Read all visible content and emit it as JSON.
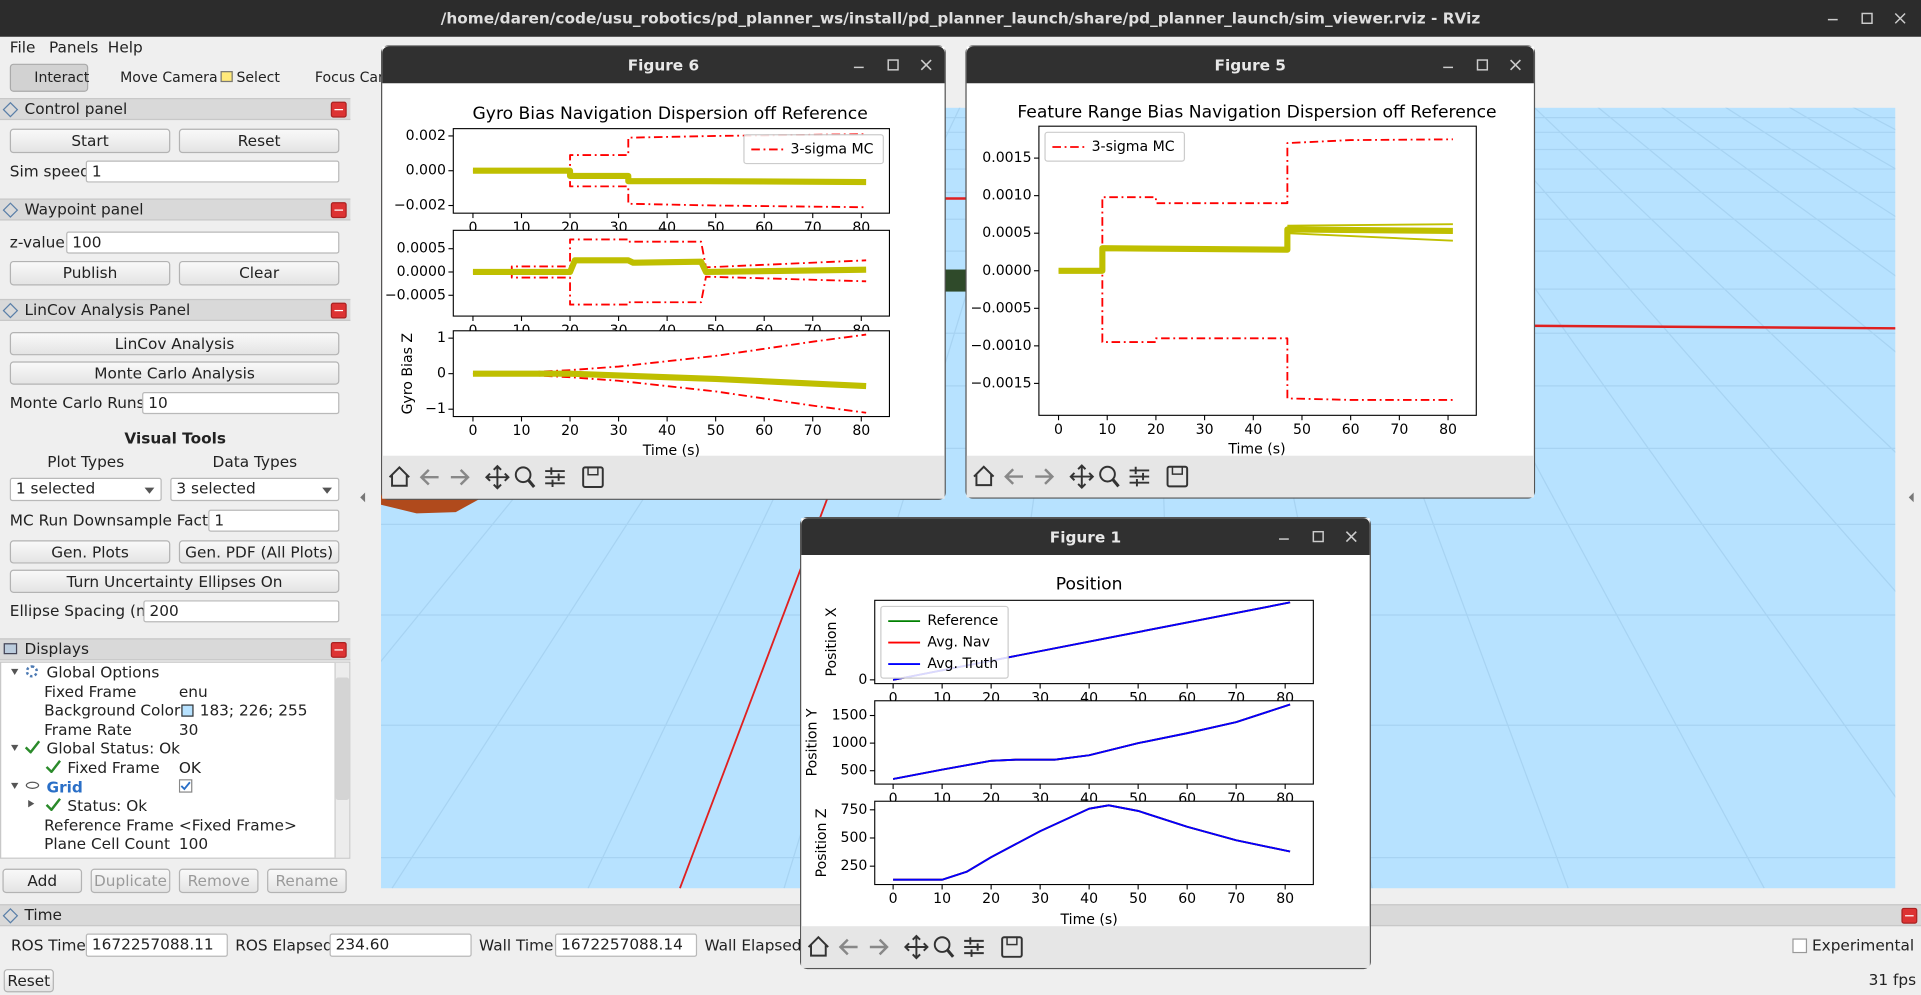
{
  "window_title": "/home/daren/code/usu_robotics/pd_planner_ws/install/pd_planner_launch/share/pd_planner_launch/sim_viewer.rviz - RViz",
  "menu": [
    "File",
    "Panels",
    "Help"
  ],
  "toolbar": [
    "Interact",
    "Move Camera",
    "Select",
    "Focus Camera"
  ],
  "control_panel": {
    "title": "Control panel",
    "start": "Start",
    "reset": "Reset",
    "sim_speed_label": "Sim speed:",
    "sim_speed": "1"
  },
  "waypoint_panel": {
    "title": "Waypoint panel",
    "z_label": "z-value:",
    "z_value": "100",
    "publish": "Publish",
    "clear": "Clear"
  },
  "lincov_panel": {
    "title": "LinCov Analysis Panel",
    "lincov_button": "LinCov Analysis",
    "mc_button": "Monte Carlo Analysis",
    "mc_runs_label": "Monte Carlo Runs:",
    "mc_runs": "10",
    "visual_tools": "Visual Tools",
    "plot_types_label": "Plot Types",
    "data_types_label": "Data Types",
    "plot_types": "1 selected",
    "data_types": "3 selected",
    "downsample_label": "MC Run Downsample Factor:",
    "downsample": "1",
    "gen_plots": "Gen. Plots",
    "gen_pdf": "Gen. PDF (All Plots)",
    "ellipses_button": "Turn Uncertainty Ellipses On",
    "ellipse_spacing_label": "Ellipse Spacing (m):",
    "ellipse_spacing": "200"
  },
  "displays": {
    "title": "Displays",
    "rows": [
      {
        "name": "Global Options"
      },
      {
        "name": "Fixed Frame",
        "value": "enu"
      },
      {
        "name": "Background Color",
        "value": "183; 226; 255"
      },
      {
        "name": "Frame Rate",
        "value": "30"
      },
      {
        "name": "Global Status: Ok"
      },
      {
        "name": "Fixed Frame",
        "value": "OK"
      },
      {
        "name": "Grid"
      },
      {
        "name": "Status: Ok"
      },
      {
        "name": "Reference Frame",
        "value": "<Fixed Frame>"
      },
      {
        "name": "Plane Cell Count",
        "value": "100"
      }
    ],
    "buttons": [
      "Add",
      "Duplicate",
      "Remove",
      "Rename"
    ]
  },
  "time_panel": {
    "title": "Time",
    "ros_time_label": "ROS Time:",
    "ros_time": "1672257088.11",
    "ros_elapsed_label": "ROS Elapsed:",
    "ros_elapsed": "234.60",
    "wall_time_label": "Wall Time:",
    "wall_time": "1672257088.14",
    "wall_elapsed_label": "Wall Elapsed:",
    "experimental": "Experimental",
    "reset": "Reset",
    "fps": "31 fps"
  },
  "figures": [
    {
      "window_title": "Figure 6",
      "title": "Gyro Bias Navigation Dispersion off Reference",
      "xlabel": "Time (s)",
      "subplots": [
        {
          "xlim": [
            -4.05,
            85.8
          ],
          "ylim": [
            -0.00244,
            0.00242
          ],
          "xticks": [
            0,
            10,
            20,
            30,
            40,
            50,
            60,
            70,
            80
          ],
          "yticks": [
            0.002,
            {
              "value": 0,
              "label": "0.000"
            },
            {
              "value": -0.002,
              "label": "−0.002"
            }
          ],
          "legend": "upper right",
          "series": [
            {
              "name": "3-sigma MC",
              "color": "#ff0000",
              "linestyle": "dashdot",
              "linewidth": 1.5,
              "x": [
                0,
                8,
                8,
                20,
                20,
                32,
                32,
                50,
                81
              ],
              "values": [
                5e-05,
                5e-05,
                0.0001,
                0.0001,
                0.0009,
                0.0009,
                0.0019,
                0.002,
                0.0021
              ]
            },
            {
              "color": "#ff0000",
              "linestyle": "dashdot",
              "linewidth": 1.5,
              "x": [
                0,
                8,
                8,
                20,
                20,
                32,
                32,
                50,
                81
              ],
              "values": [
                -5e-05,
                -5e-05,
                -0.0001,
                -0.0001,
                -0.0009,
                -0.0009,
                -0.0019,
                -0.002,
                -0.0021
              ]
            },
            {
              "color": "#bfbf00",
              "linestyle": "solid",
              "linewidth": 5,
              "x": [
                0,
                20,
                20,
                32,
                32,
                48,
                81
              ],
              "values": [
                0,
                0,
                -0.0003,
                -0.0003,
                -0.0006,
                -0.0006,
                -0.00065
              ]
            }
          ]
        },
        {
          "xlim": [
            -4.05,
            85.8
          ],
          "ylim": [
            -0.000947,
            0.000895
          ],
          "xticks": [
            0,
            10,
            20,
            30,
            40,
            50,
            60,
            70,
            80
          ],
          "yticks": [
            0.0005,
            {
              "value": 0,
              "label": "0.0000"
            },
            {
              "value": -0.0005,
              "label": "−0.0005"
            }
          ],
          "series": [
            {
              "color": "#ff0000",
              "linestyle": "dashdot",
              "linewidth": 1.5,
              "x": [
                0,
                8,
                8,
                20,
                20,
                32,
                32,
                47,
                48,
                81
              ],
              "values": [
                2e-05,
                2e-05,
                0.00012,
                0.00012,
                0.0007,
                0.0007,
                0.00065,
                0.00065,
                0.0001,
                0.00025
              ]
            },
            {
              "color": "#ff0000",
              "linestyle": "dashdot",
              "linewidth": 1.5,
              "x": [
                0,
                8,
                8,
                20,
                20,
                32,
                32,
                47,
                48,
                81
              ],
              "values": [
                -2e-05,
                -2e-05,
                -0.00012,
                -0.00012,
                -0.0007,
                -0.0007,
                -0.00065,
                -0.00065,
                -0.0001,
                -0.0002
              ]
            },
            {
              "color": "#bfbf00",
              "linestyle": "solid",
              "linewidth": 5,
              "x": [
                0,
                20,
                21,
                32,
                33,
                47,
                48,
                81
              ],
              "values": [
                0,
                0,
                0.00025,
                0.00025,
                0.0002,
                0.00022,
                0,
                5e-05
              ]
            }
          ]
        },
        {
          "xlim": [
            -4.05,
            85.8
          ],
          "ylim": [
            -1.207,
            1.207
          ],
          "xticks": [
            0,
            10,
            20,
            30,
            40,
            50,
            60,
            70,
            80
          ],
          "yticks": [
            1,
            0,
            {
              "value": -1,
              "label": "−1"
            }
          ],
          "ylabel": "Gyro Bias Z",
          "series": [
            {
              "color": "#ff0000",
              "linestyle": "dashdot",
              "linewidth": 1.5,
              "x": [
                0,
                10,
                20,
                30,
                40,
                50,
                60,
                70,
                81
              ],
              "values": [
                0,
                0.03,
                0.1,
                0.2,
                0.35,
                0.5,
                0.7,
                0.9,
                1.1
              ]
            },
            {
              "color": "#ff0000",
              "linestyle": "dashdot",
              "linewidth": 1.5,
              "x": [
                0,
                10,
                20,
                30,
                40,
                50,
                60,
                70,
                81
              ],
              "values": [
                0,
                -0.03,
                -0.1,
                -0.2,
                -0.35,
                -0.5,
                -0.7,
                -0.9,
                -1.1
              ]
            },
            {
              "color": "#bfbf00",
              "linestyle": "solid",
              "linewidth": 5,
              "x": [
                0,
                20,
                30,
                50,
                81
              ],
              "values": [
                0,
                0,
                -0.05,
                -0.15,
                -0.35
              ]
            }
          ]
        }
      ]
    },
    {
      "window_title": "Figure 5",
      "title": "Feature Range Bias Navigation Dispersion off Reference",
      "xlabel": "Time (s)",
      "subplots": [
        {
          "xlim": [
            -4.03,
            85.8
          ],
          "ylim": [
            -0.001925,
            0.001925
          ],
          "xticks": [
            0,
            10,
            20,
            30,
            40,
            50,
            60,
            70,
            80
          ],
          "yticks": [
            0.0015,
            {
              "value": 0.001,
              "label": "0.0010"
            },
            0.0005,
            {
              "value": 0,
              "label": "0.0000"
            },
            {
              "value": -0.0005,
              "label": "−0.0005"
            },
            {
              "value": -0.001,
              "label": "−0.0010"
            },
            {
              "value": -0.0015,
              "label": "−0.0015"
            }
          ],
          "legend": "upper left",
          "series": [
            {
              "name": "3-sigma MC",
              "color": "#ff0000",
              "linestyle": "dashdot",
              "linewidth": 1.5,
              "x": [
                0,
                9,
                9,
                20,
                20,
                47,
                47,
                60,
                81
              ],
              "values": [
                0,
                0,
                0.00098,
                0.00098,
                0.0009,
                0.0009,
                0.0017,
                0.00174,
                0.00175
              ]
            },
            {
              "color": "#ff0000",
              "linestyle": "dashdot",
              "linewidth": 1.5,
              "x": [
                0,
                9,
                9,
                20,
                20,
                47,
                47,
                60,
                81
              ],
              "values": [
                0,
                0,
                -0.00095,
                -0.00095,
                -0.0009,
                -0.0009,
                -0.0017,
                -0.00172,
                -0.00172
              ]
            },
            {
              "color": "#bfbf00",
              "linestyle": "solid",
              "linewidth": 5,
              "x": [
                0,
                9,
                9,
                47,
                47,
                81
              ],
              "values": [
                0,
                0,
                0.0003,
                0.00028,
                0.00055,
                0.00053
              ]
            },
            {
              "color": "#bfbf00",
              "linestyle": "solid",
              "linewidth": 1.5,
              "x": [
                47,
                81
              ],
              "values": [
                0.0005,
                0.0004
              ]
            },
            {
              "color": "#bfbf00",
              "linestyle": "solid",
              "linewidth": 1.5,
              "x": [
                47,
                81
              ],
              "values": [
                0.0006,
                0.00062
              ]
            }
          ]
        }
      ]
    },
    {
      "window_title": "Figure 1",
      "title": "Position",
      "xlabel": "Time (s)",
      "subplots": [
        {
          "xlim": [
            -3.75,
            85.75
          ],
          "ylim": [
            -90,
            1900
          ],
          "xticks": [
            0,
            10,
            20,
            30,
            40,
            50,
            60,
            70,
            80
          ],
          "yticks": [
            0
          ],
          "ylabel": "Position X",
          "legend": "upper left",
          "series": [
            {
              "name": "Reference",
              "color": "#008000",
              "linestyle": "solid",
              "linewidth": 1.5,
              "x": [
                0,
                81
              ],
              "values": [
                0,
                1850
              ]
            },
            {
              "name": "Avg. Nav",
              "color": "#ff0000",
              "linestyle": "solid",
              "linewidth": 1.5,
              "x": [
                0,
                81
              ],
              "values": [
                0,
                1850
              ]
            },
            {
              "name": "Avg. Truth",
              "color": "#0000ff",
              "linestyle": "solid",
              "linewidth": 1.5,
              "x": [
                0,
                81
              ],
              "values": [
                0,
                1850
              ]
            }
          ]
        },
        {
          "xlim": [
            -3.75,
            85.75
          ],
          "ylim": [
            258,
            1767
          ],
          "xticks": [
            0,
            10,
            20,
            30,
            40,
            50,
            60,
            70,
            80
          ],
          "yticks": [
            1500,
            1000,
            500
          ],
          "ylabel": "Position Y",
          "series": [
            {
              "color": "#008000",
              "linestyle": "solid",
              "linewidth": 1.5,
              "x": [
                0,
                10,
                20,
                25,
                33,
                40,
                50,
                60,
                70,
                81
              ],
              "values": [
                350,
                520,
                680,
                700,
                700,
                780,
                1000,
                1180,
                1380,
                1700
              ]
            },
            {
              "color": "#ff0000",
              "linestyle": "solid",
              "linewidth": 1.5,
              "x": [
                0,
                10,
                20,
                25,
                33,
                40,
                50,
                60,
                70,
                81
              ],
              "values": [
                350,
                520,
                680,
                700,
                700,
                780,
                1000,
                1180,
                1380,
                1700
              ]
            },
            {
              "color": "#0000ff",
              "linestyle": "solid",
              "linewidth": 1.5,
              "x": [
                0,
                10,
                20,
                25,
                33,
                40,
                50,
                60,
                70,
                81
              ],
              "values": [
                350,
                520,
                680,
                700,
                700,
                780,
                1000,
                1180,
                1380,
                1700
              ]
            }
          ]
        },
        {
          "xlim": [
            -3.75,
            85.75
          ],
          "ylim": [
            87,
            826
          ],
          "xticks": [
            0,
            10,
            20,
            30,
            40,
            50,
            60,
            70,
            80
          ],
          "yticks": [
            750,
            500,
            250
          ],
          "ylabel": "Position Z",
          "series": [
            {
              "color": "#008000",
              "linestyle": "solid",
              "linewidth": 1.5,
              "x": [
                0,
                10,
                15,
                20,
                30,
                40,
                44,
                50,
                60,
                70,
                81
              ],
              "values": [
                130,
                130,
                200,
                330,
                560,
                760,
                790,
                740,
                600,
                480,
                380
              ]
            },
            {
              "color": "#ff0000",
              "linestyle": "solid",
              "linewidth": 1.5,
              "x": [
                0,
                10,
                15,
                20,
                30,
                40,
                44,
                50,
                60,
                70,
                81
              ],
              "values": [
                130,
                130,
                200,
                330,
                560,
                760,
                790,
                740,
                600,
                480,
                380
              ]
            },
            {
              "color": "#0000ff",
              "linestyle": "solid",
              "linewidth": 1.5,
              "x": [
                0,
                10,
                15,
                20,
                30,
                40,
                44,
                50,
                60,
                70,
                81
              ],
              "values": [
                130,
                130,
                200,
                330,
                560,
                760,
                790,
                740,
                600,
                480,
                380
              ]
            }
          ]
        }
      ]
    }
  ]
}
